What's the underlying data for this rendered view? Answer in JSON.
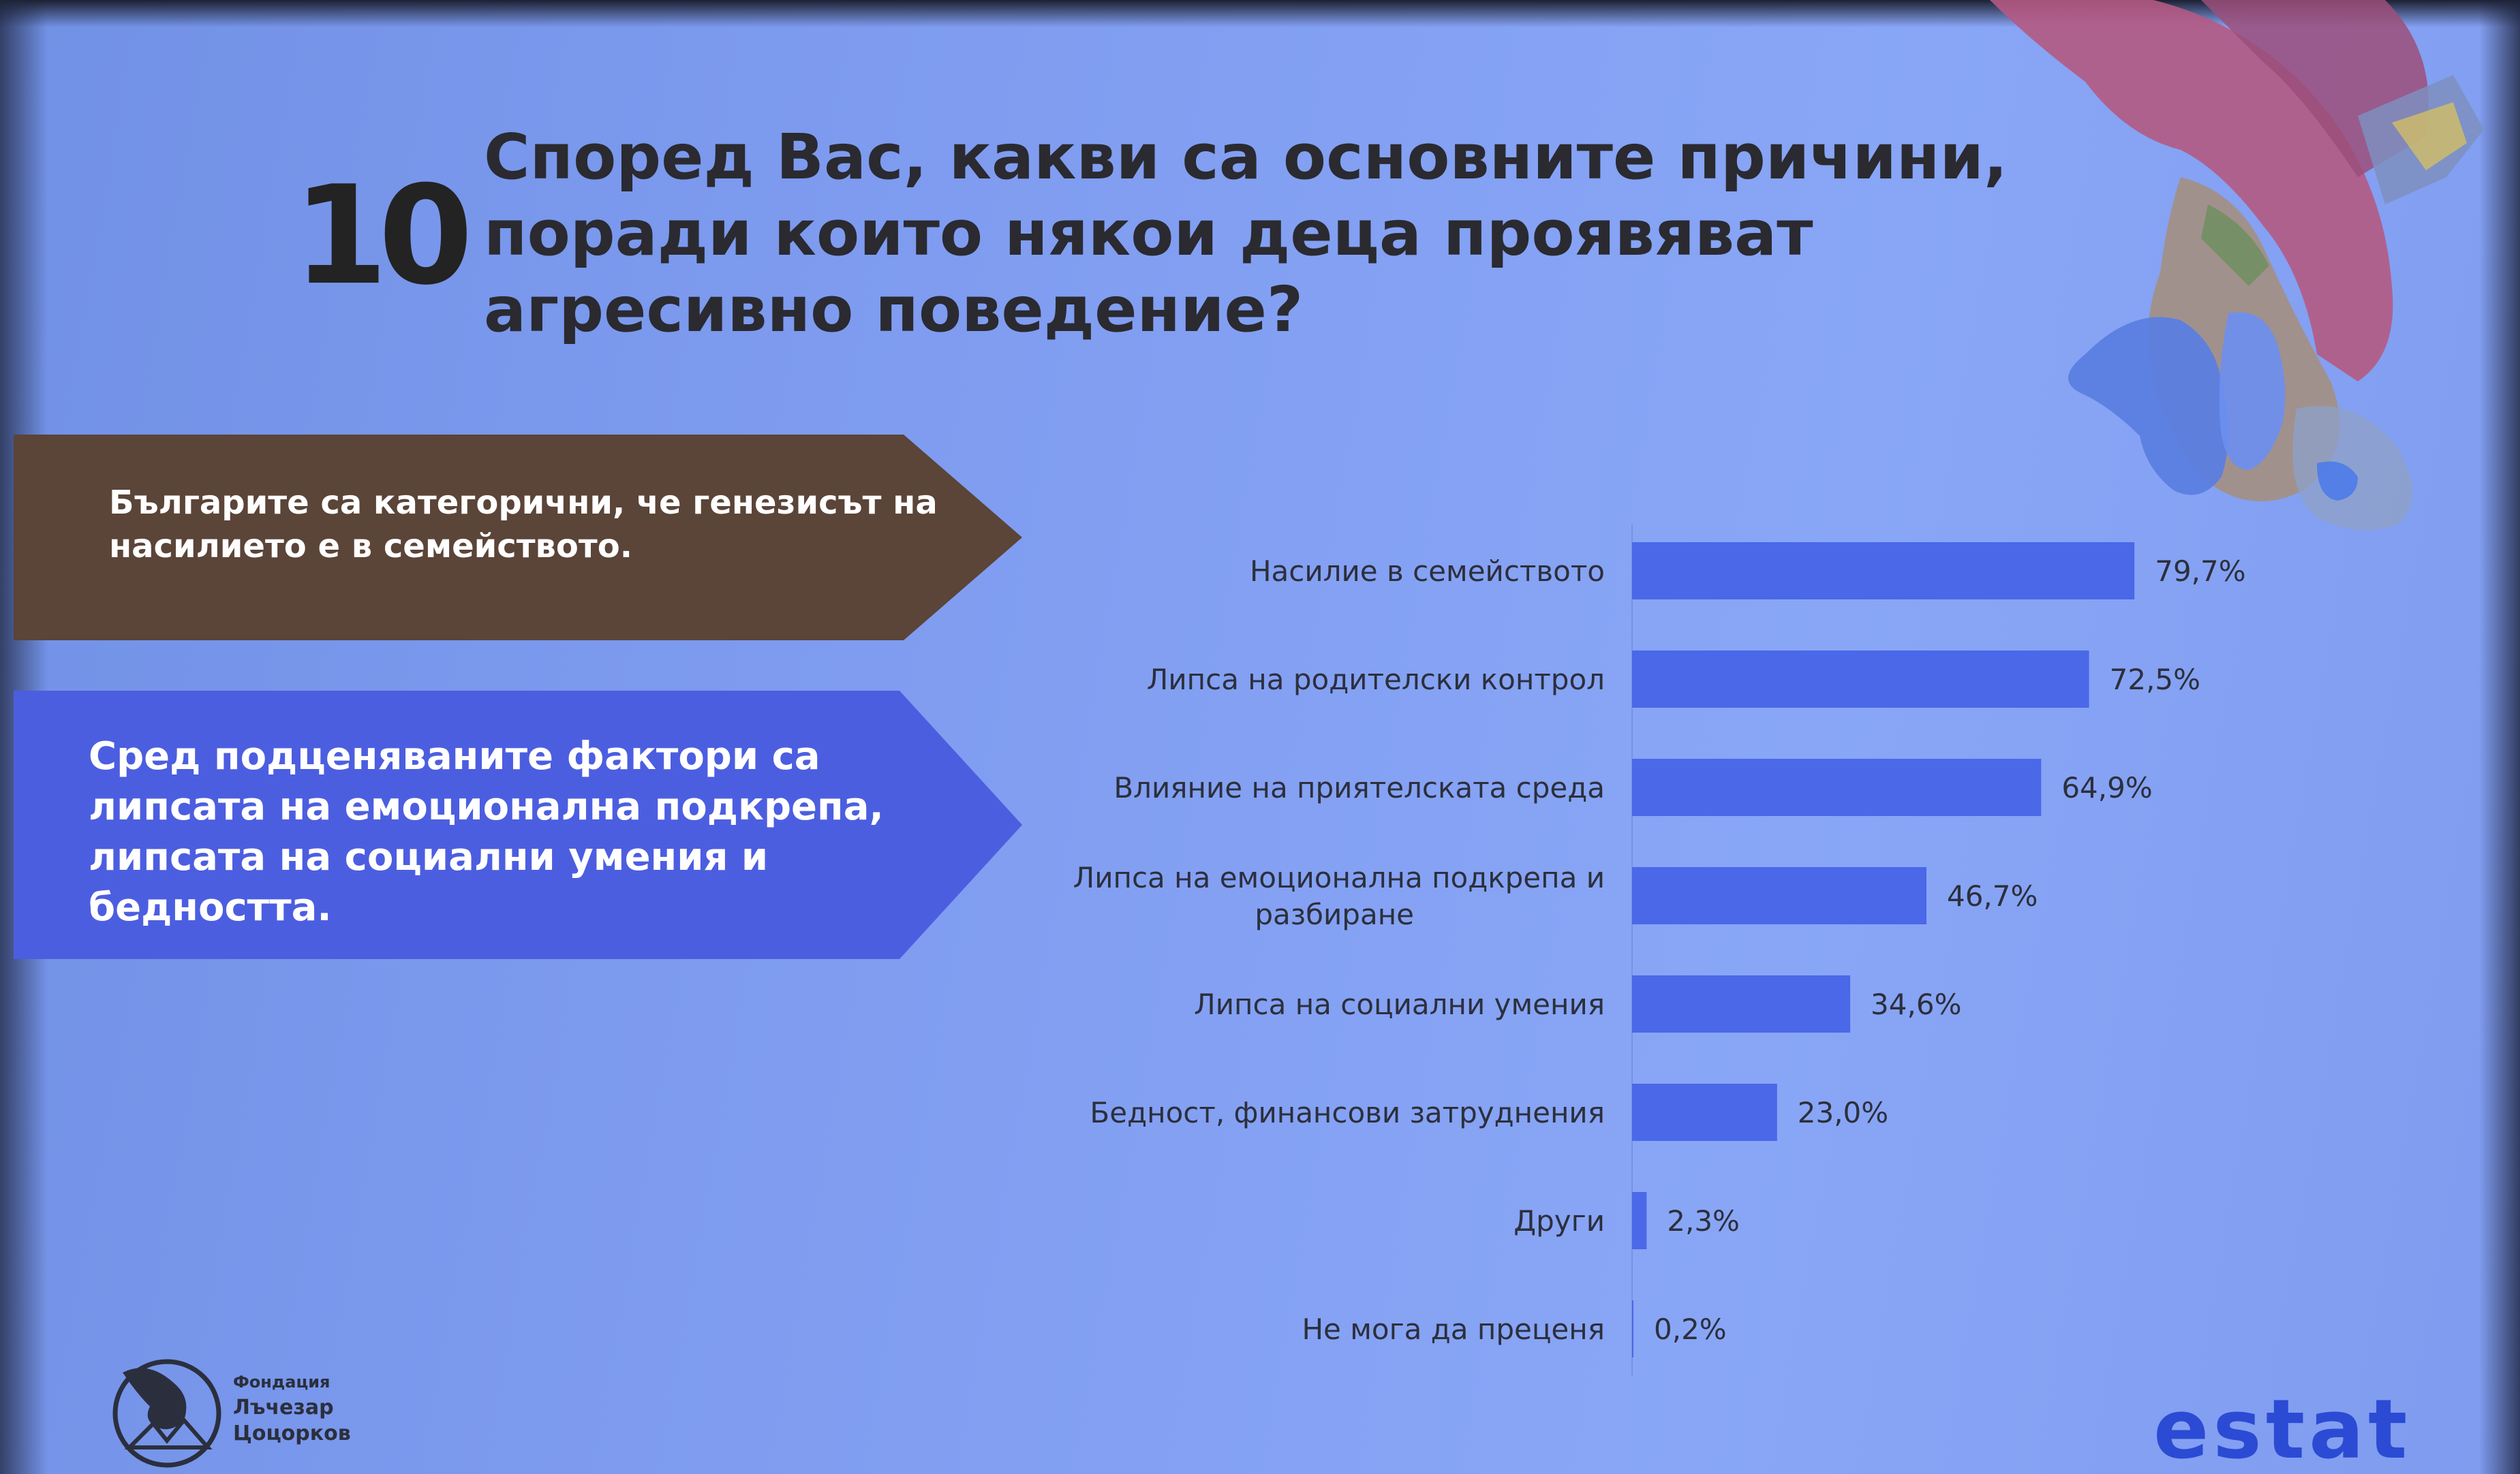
{
  "slide": {
    "number": "10",
    "title": "Според Вас, какви са основните причини, поради които някои деца проявяват агресивно поведение?"
  },
  "callouts": {
    "brown": "Българите са категорични, че генезисът на насилието е в семейството.",
    "blue": "Сред подценяваните фактори са липсата на емоционална подкрепа, липсата на социални умения и бедността."
  },
  "chart_data": {
    "type": "bar",
    "orientation": "horizontal",
    "categories": [
      "Насилие в семейството",
      "Липса на родителски контрол",
      "Влияние на приятелската среда",
      "Липса на емоционална подкрепа и разбиране",
      "Липса на социални умения",
      "Бедност, финансови затруднения",
      "Други",
      "Не мога да преценя"
    ],
    "category_lines": [
      [
        "Насилие в семейството"
      ],
      [
        "Липса на родителски контрол"
      ],
      [
        "Влияние на приятелската среда"
      ],
      [
        "Липса на емоционална подкрепа и",
        "разбиране"
      ],
      [
        "Липса на социални умения"
      ],
      [
        "Бедност, финансови затруднения"
      ],
      [
        "Други"
      ],
      [
        "Не мога да преценя"
      ]
    ],
    "values": [
      79.7,
      72.5,
      64.9,
      46.7,
      34.6,
      23.0,
      2.3,
      0.2
    ],
    "value_labels": [
      "79,7%",
      "72,5%",
      "64,9%",
      "46,7%",
      "34,6%",
      "23,0%",
      "2,3%",
      "0,2%"
    ],
    "xlim": [
      0,
      100
    ],
    "bar_color": "#4a68e8",
    "grid": false,
    "legend": "none"
  },
  "footer": {
    "foundation_line1": "Фондация",
    "foundation_line2": "Лъчезар",
    "foundation_line3": "Цоцорков",
    "estat_logo": "estat",
    "logo_icon": "bird-in-circle-icon"
  },
  "colors": {
    "background": "#7f9cf0",
    "brown_callout": "#5b4438",
    "blue_callout": "#4c5ee0",
    "bar": "#4a68e8"
  }
}
